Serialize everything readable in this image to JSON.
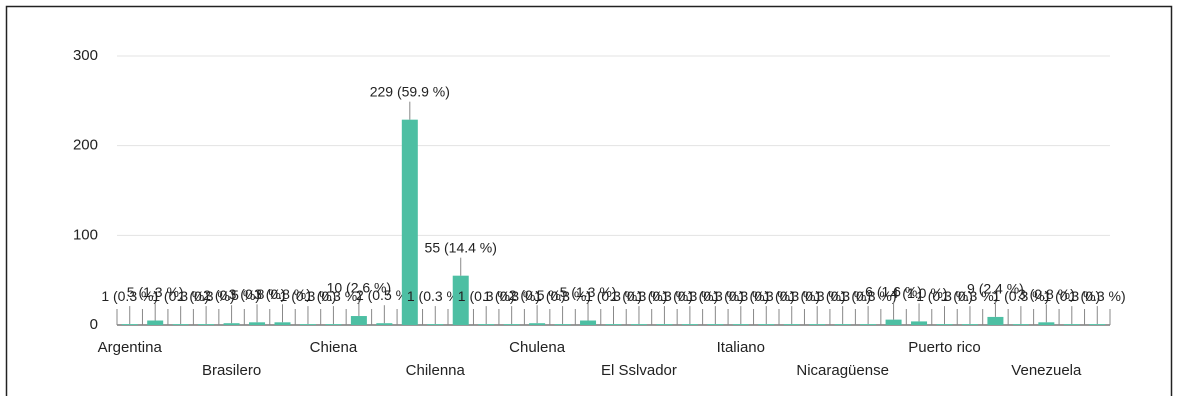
{
  "chart_data": {
    "type": "bar",
    "categories": [
      "Argentina",
      null,
      null,
      null,
      "Brasilero",
      null,
      null,
      null,
      "Chiena",
      null,
      null,
      null,
      "Chilenna",
      null,
      null,
      null,
      "Chulena",
      null,
      null,
      null,
      "El Sslvador",
      null,
      null,
      null,
      "Italiano",
      null,
      null,
      null,
      "Nicaragüense",
      null,
      null,
      null,
      "Puerto rico",
      null,
      null,
      null,
      "Venezuela",
      null,
      null
    ],
    "values": [
      1,
      5,
      1,
      1,
      2,
      3,
      3,
      1,
      1,
      10,
      2,
      229,
      1,
      55,
      1,
      1,
      2,
      1,
      5,
      1,
      1,
      1,
      1,
      1,
      1,
      1,
      1,
      1,
      1,
      1,
      6,
      4,
      1,
      1,
      9,
      1,
      3,
      1,
      1
    ],
    "value_labels": [
      "1 (0.3 %)",
      "5 (1.3 %)",
      "1 (0.3 %)",
      "1 (0.3 %)",
      "2 (0.5 %)",
      "3 (0.8 %)",
      "3 (0.8 %)",
      "1 (0.3 %)",
      "1 (0.3 %)",
      "10 (2.6 %)",
      "2 (0.5 %)",
      "229 (59.9 %)",
      "1 (0.3 %)",
      "55 (14.4 %)",
      "1 (0.3 %)",
      "1 (0.3 %)",
      "2 (0.5 %)",
      "1 (0.3 %)",
      "5 (1.3 %)",
      "1 (0.3 %)",
      "1 (0.3 %)",
      "1 (0.3 %)",
      "1 (0.3 %)",
      "1 (0.3 %)",
      "1 (0.3 %)",
      "1 (0.3 %)",
      "1 (0.3 %)",
      "1 (0.3 %)",
      "1 (0.3 %)",
      "1 (0.3 %)",
      "6 (1.6 %)",
      "4 (1.0 %)",
      "1 (0.3 %)",
      "1 (0.3 %)",
      "9 (2.4 %)",
      "1 (0.3 %)",
      "3 (0.8 %)",
      "1 (0.3 %)",
      "1 (0.3 %)"
    ],
    "color": "#4dbfa3",
    "ylim": [
      0,
      300
    ],
    "yticks": [
      0,
      100,
      200,
      300
    ],
    "grid": true
  }
}
